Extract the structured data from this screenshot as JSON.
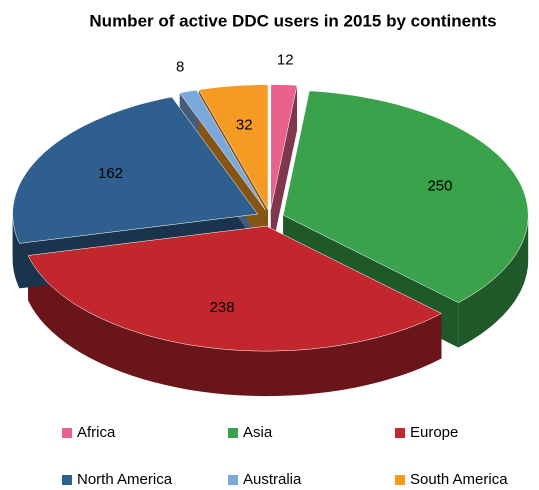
{
  "chart_data": {
    "type": "pie",
    "title": "Number of active DDC users in 2015 by continents",
    "categories": [
      "Africa",
      "Asia",
      "Europe",
      "North America",
      "Australia",
      "South America"
    ],
    "values": [
      12,
      250,
      238,
      162,
      8,
      32
    ],
    "colors": [
      "#e9628c",
      "#3aa24b",
      "#c1272d",
      "#2f5f8e",
      "#7ba8da",
      "#f59b23"
    ],
    "legend": "bottom"
  }
}
